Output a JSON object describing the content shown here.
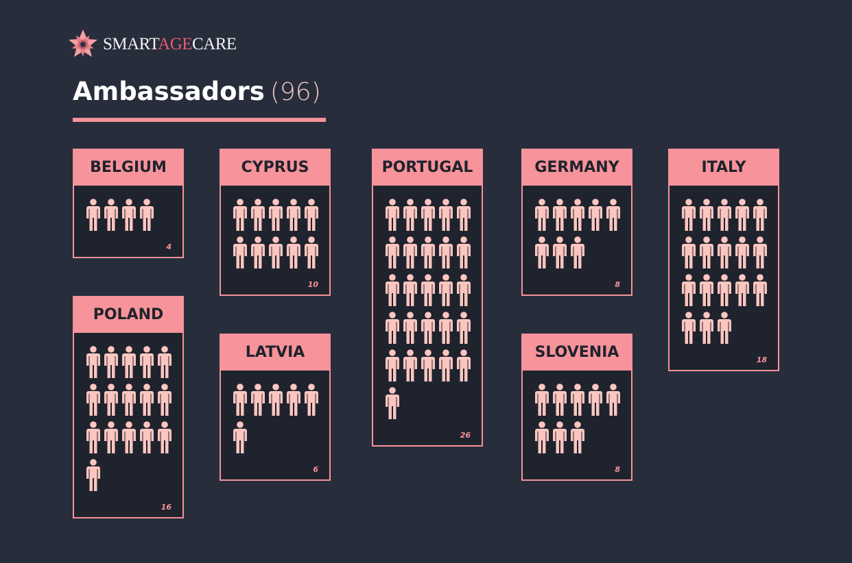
{
  "brand": {
    "name_part1": "SMART",
    "name_accent": "AGE",
    "name_part2": "CARE"
  },
  "header": {
    "title": "Ambassadors",
    "total": "(96)"
  },
  "colors": {
    "background": "#272d3b",
    "accent": "#f7939a",
    "icon": "#fcc6c0",
    "card": "#1f232d"
  },
  "chart_data": {
    "type": "pictogram",
    "icon": "person-icon",
    "categories": [
      "BELGIUM",
      "POLAND",
      "CYPRUS",
      "LATVIA",
      "PORTUGAL",
      "GERMANY",
      "SLOVENIA",
      "ITALY"
    ],
    "values": [
      4,
      16,
      10,
      6,
      26,
      8,
      8,
      18
    ],
    "labels": [
      "4",
      "16",
      "10",
      "6",
      "26",
      "8",
      "8",
      "18"
    ]
  }
}
